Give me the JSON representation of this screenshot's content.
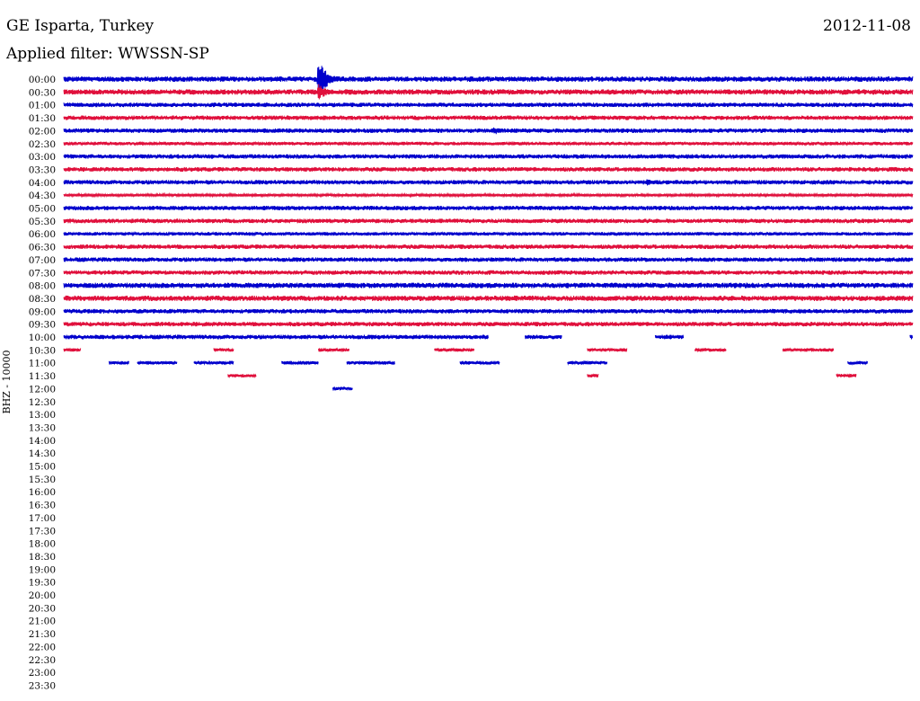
{
  "header": {
    "station": "GE Isparta, Turkey",
    "date": "2012-11-08",
    "filter": "Applied filter: WWSSN-SP"
  },
  "chart_data": {
    "type": "line",
    "title": "GE Isparta, Turkey",
    "subtitle": "Applied filter: WWSSN-SP",
    "ylabel": "BHZ - 10000",
    "xlabel": "",
    "grid": false,
    "colors": {
      "even_row": "#0000cc",
      "odd_row": "#e0103c"
    },
    "y_ticks": [
      "00:00",
      "00:30",
      "01:00",
      "01:30",
      "02:00",
      "02:30",
      "03:00",
      "03:30",
      "04:00",
      "04:30",
      "05:00",
      "05:30",
      "06:00",
      "06:30",
      "07:00",
      "07:30",
      "08:00",
      "08:30",
      "09:00",
      "09:30",
      "10:00",
      "10:30",
      "11:00",
      "11:30",
      "12:00",
      "12:30",
      "13:00",
      "13:30",
      "14:00",
      "14:30",
      "15:00",
      "15:30",
      "16:00",
      "16:30",
      "17:00",
      "17:30",
      "18:00",
      "18:30",
      "19:00",
      "19:30",
      "20:00",
      "20:30",
      "21:00",
      "21:30",
      "22:00",
      "22:30",
      "23:00",
      "23:30"
    ],
    "row_minutes": 30,
    "series": [
      {
        "row": "00:00",
        "segments": [
          [
            0,
            30
          ]
        ],
        "amplitude": 3,
        "events": [
          {
            "minute": 9.0,
            "amplitude": 24
          }
        ]
      },
      {
        "row": "00:30",
        "segments": [
          [
            0,
            30
          ]
        ],
        "amplitude": 3,
        "events": [
          {
            "minute": 9.0,
            "amplitude": 10
          }
        ]
      },
      {
        "row": "01:00",
        "segments": [
          [
            0,
            30
          ]
        ],
        "amplitude": 2.5,
        "events": []
      },
      {
        "row": "01:30",
        "segments": [
          [
            0,
            30
          ]
        ],
        "amplitude": 2.5,
        "events": []
      },
      {
        "row": "02:00",
        "segments": [
          [
            0,
            30
          ]
        ],
        "amplitude": 2.5,
        "events": [
          {
            "minute": 15.2,
            "amplitude": 5
          }
        ]
      },
      {
        "row": "02:30",
        "segments": [
          [
            0,
            30
          ]
        ],
        "amplitude": 2,
        "events": []
      },
      {
        "row": "03:00",
        "segments": [
          [
            0,
            30
          ]
        ],
        "amplitude": 2.5,
        "events": []
      },
      {
        "row": "03:30",
        "segments": [
          [
            0,
            30
          ]
        ],
        "amplitude": 2.5,
        "events": []
      },
      {
        "row": "04:00",
        "segments": [
          [
            0,
            30
          ]
        ],
        "amplitude": 2.5,
        "events": [
          {
            "minute": 20.6,
            "amplitude": 4
          }
        ]
      },
      {
        "row": "04:30",
        "segments": [
          [
            0,
            30
          ]
        ],
        "amplitude": 1.5,
        "events": []
      },
      {
        "row": "05:00",
        "segments": [
          [
            0,
            30
          ]
        ],
        "amplitude": 2.5,
        "events": []
      },
      {
        "row": "05:30",
        "segments": [
          [
            0,
            30
          ]
        ],
        "amplitude": 2.5,
        "events": []
      },
      {
        "row": "06:00",
        "segments": [
          [
            0,
            30
          ]
        ],
        "amplitude": 2,
        "events": []
      },
      {
        "row": "06:30",
        "segments": [
          [
            0,
            30
          ]
        ],
        "amplitude": 2.5,
        "events": []
      },
      {
        "row": "07:00",
        "segments": [
          [
            0,
            30
          ]
        ],
        "amplitude": 2.5,
        "events": []
      },
      {
        "row": "07:30",
        "segments": [
          [
            0,
            30
          ]
        ],
        "amplitude": 2.5,
        "events": []
      },
      {
        "row": "08:00",
        "segments": [
          [
            0,
            30
          ]
        ],
        "amplitude": 3,
        "events": []
      },
      {
        "row": "08:30",
        "segments": [
          [
            0,
            30
          ]
        ],
        "amplitude": 3,
        "events": []
      },
      {
        "row": "09:00",
        "segments": [
          [
            0,
            30
          ]
        ],
        "amplitude": 2.5,
        "events": []
      },
      {
        "row": "09:30",
        "segments": [
          [
            0,
            30
          ]
        ],
        "amplitude": 2.5,
        "events": []
      },
      {
        "row": "10:00",
        "segments": [
          [
            0,
            15.0
          ],
          [
            16.3,
            17.6
          ],
          [
            20.9,
            21.9
          ],
          [
            29.9,
            30
          ]
        ],
        "amplitude": 2.5,
        "events": []
      },
      {
        "row": "10:30",
        "segments": [
          [
            0,
            0.6
          ],
          [
            5.3,
            6.0
          ],
          [
            9.0,
            10.1
          ],
          [
            13.1,
            14.5
          ],
          [
            18.5,
            19.9
          ],
          [
            22.3,
            23.4
          ],
          [
            25.4,
            27.2
          ]
        ],
        "amplitude": 2,
        "events": []
      },
      {
        "row": "11:00",
        "segments": [
          [
            1.6,
            2.3
          ],
          [
            2.6,
            4.0
          ],
          [
            4.6,
            6.0
          ],
          [
            7.7,
            9.0
          ],
          [
            10.0,
            11.7
          ],
          [
            14.0,
            15.4
          ],
          [
            17.8,
            19.2
          ],
          [
            27.7,
            28.4
          ]
        ],
        "amplitude": 2,
        "events": []
      },
      {
        "row": "11:30",
        "segments": [
          [
            5.8,
            6.8
          ],
          [
            18.5,
            18.9
          ],
          [
            27.3,
            28.0
          ]
        ],
        "amplitude": 2,
        "events": []
      },
      {
        "row": "12:00",
        "segments": [
          [
            9.5,
            10.2
          ]
        ],
        "amplitude": 2,
        "events": []
      }
    ]
  }
}
